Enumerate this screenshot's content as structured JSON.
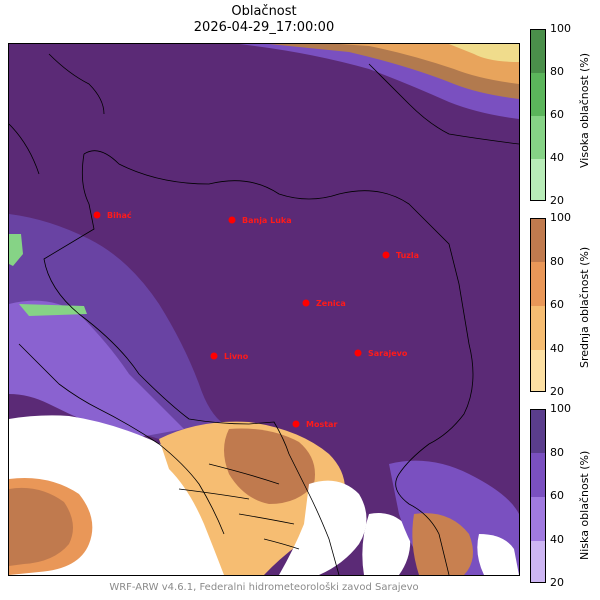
{
  "title": "Oblačnost",
  "datetime": "2026-04-29_17:00:00",
  "footer": "WRF-ARW v4.6.1, Federalni hidrometeorološki zavod Sarajevo",
  "cities": [
    {
      "name": "Bihać"
    },
    {
      "name": "Banja Luka"
    },
    {
      "name": "Tuzla"
    },
    {
      "name": "Zenica"
    },
    {
      "name": "Livno"
    },
    {
      "name": "Sarajevo"
    },
    {
      "name": "Mostar"
    }
  ],
  "colorbars": {
    "high": {
      "label": "Visoka oblačnost (%)",
      "ticks": [
        "100",
        "80",
        "60",
        "40",
        "20"
      ],
      "colors": [
        "#4a8f4a",
        "#5bb55b",
        "#86d386",
        "#b8ecb8"
      ]
    },
    "mid": {
      "label": "Srednja oblačnost (%)",
      "ticks": [
        "100",
        "80",
        "60",
        "40",
        "20"
      ],
      "colors": [
        "#c07a4e",
        "#e99758",
        "#f6bd72",
        "#fde0a3"
      ]
    },
    "low": {
      "label": "Niska oblačnost (%)",
      "ticks": [
        "100",
        "80",
        "60",
        "40",
        "20"
      ],
      "colors": [
        "#5a3d8c",
        "#7a50c0",
        "#a07ae0",
        "#cdb6f3"
      ]
    }
  },
  "colors": {
    "city_marker": "#ff0000",
    "dominant_low": "#5b2a76",
    "mid_cloud": "#c88050",
    "high_cloud": "#f0dc8c"
  }
}
